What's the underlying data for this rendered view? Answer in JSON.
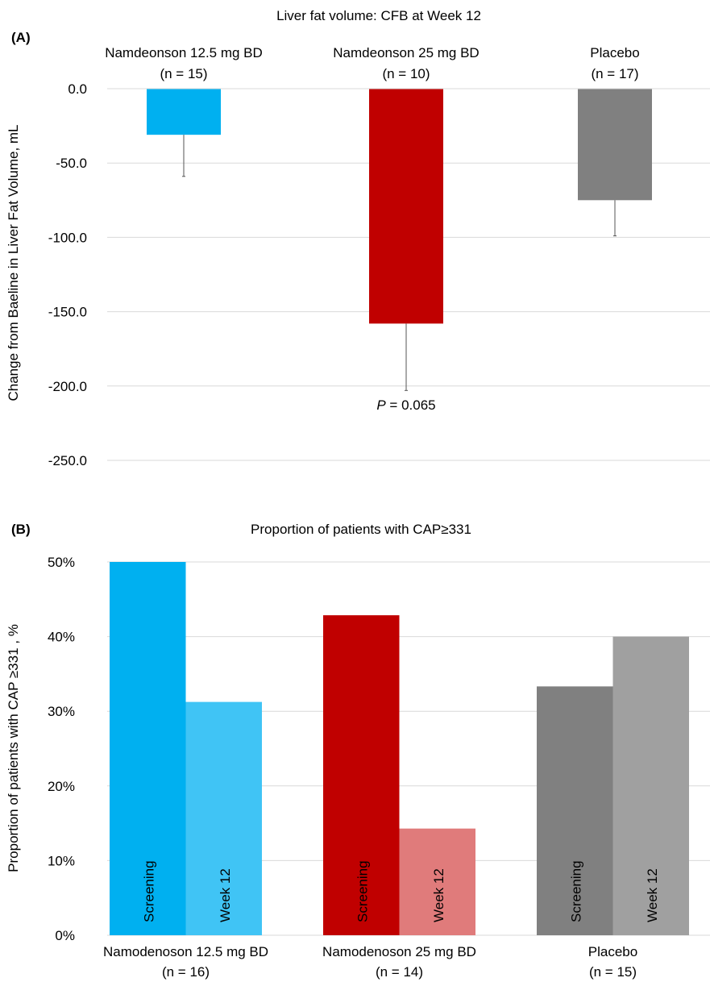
{
  "colors": {
    "cyan": "#00b0f0",
    "cyan_light": "#40c4f5",
    "red": "#c00000",
    "red_light": "#e07b7b",
    "gray": "#808080",
    "gray_light": "#a0a0a0",
    "grid": "#d9d9d9"
  },
  "chart_data": [
    {
      "panel_label": "(A)",
      "type": "bar",
      "title": "Liver fat volume: CFB at Week 12",
      "ylabel": "Change from Baeline  in  Liver Fat Volume, mL",
      "ylim": [
        -250,
        0
      ],
      "yticks": [
        0,
        -50,
        -100,
        -150,
        -200,
        -250
      ],
      "ytick_labels": [
        "0.0",
        "-50.0",
        "-100.0",
        "-150.0",
        "-200.0",
        "-250.0"
      ],
      "grid": true,
      "categories": [
        {
          "name": "Namdeonson 12.5 mg BD",
          "n": "(n = 15)",
          "value": -31,
          "error": 28,
          "color": "#00b0f0"
        },
        {
          "name": "Namdeonson 25 mg BD",
          "n": "(n = 10)",
          "value": -158,
          "error": 45,
          "color": "#c00000"
        },
        {
          "name": "Placebo",
          "n": "(n = 17)",
          "value": -75,
          "error": 24,
          "color": "#808080"
        }
      ],
      "annotation": {
        "p_symbol": "P",
        "p_text": " = 0.065",
        "category_index": 1
      }
    },
    {
      "panel_label": "(B)",
      "type": "bar",
      "title": "Proportion of patients with CAP≥331",
      "ylabel": "Proportion of patients with CAP ≥331 , %",
      "ylim": [
        0,
        50
      ],
      "yticks": [
        0,
        10,
        20,
        30,
        40,
        50
      ],
      "ytick_labels": [
        "0%",
        "10%",
        "20%",
        "30%",
        "40%",
        "50%"
      ],
      "grid": true,
      "groups": [
        {
          "name": "Namodenoson 12.5 mg BD",
          "n": "(n = 16)",
          "bars": [
            {
              "label": "Screening",
              "value": 50.0,
              "color": "#00b0f0"
            },
            {
              "label": "Week 12",
              "value": 31.25,
              "color": "#40c4f5"
            }
          ]
        },
        {
          "name": "Namodenoson 25 mg BD",
          "n": "(n = 14)",
          "bars": [
            {
              "label": "Screening",
              "value": 42.86,
              "color": "#c00000"
            },
            {
              "label": "Week 12",
              "value": 14.29,
              "color": "#e07b7b"
            }
          ]
        },
        {
          "name": "Placebo",
          "n": "(n = 15)",
          "bars": [
            {
              "label": "Screening",
              "value": 33.33,
              "color": "#808080"
            },
            {
              "label": "Week 12",
              "value": 40.0,
              "color": "#a0a0a0"
            }
          ]
        }
      ]
    }
  ]
}
